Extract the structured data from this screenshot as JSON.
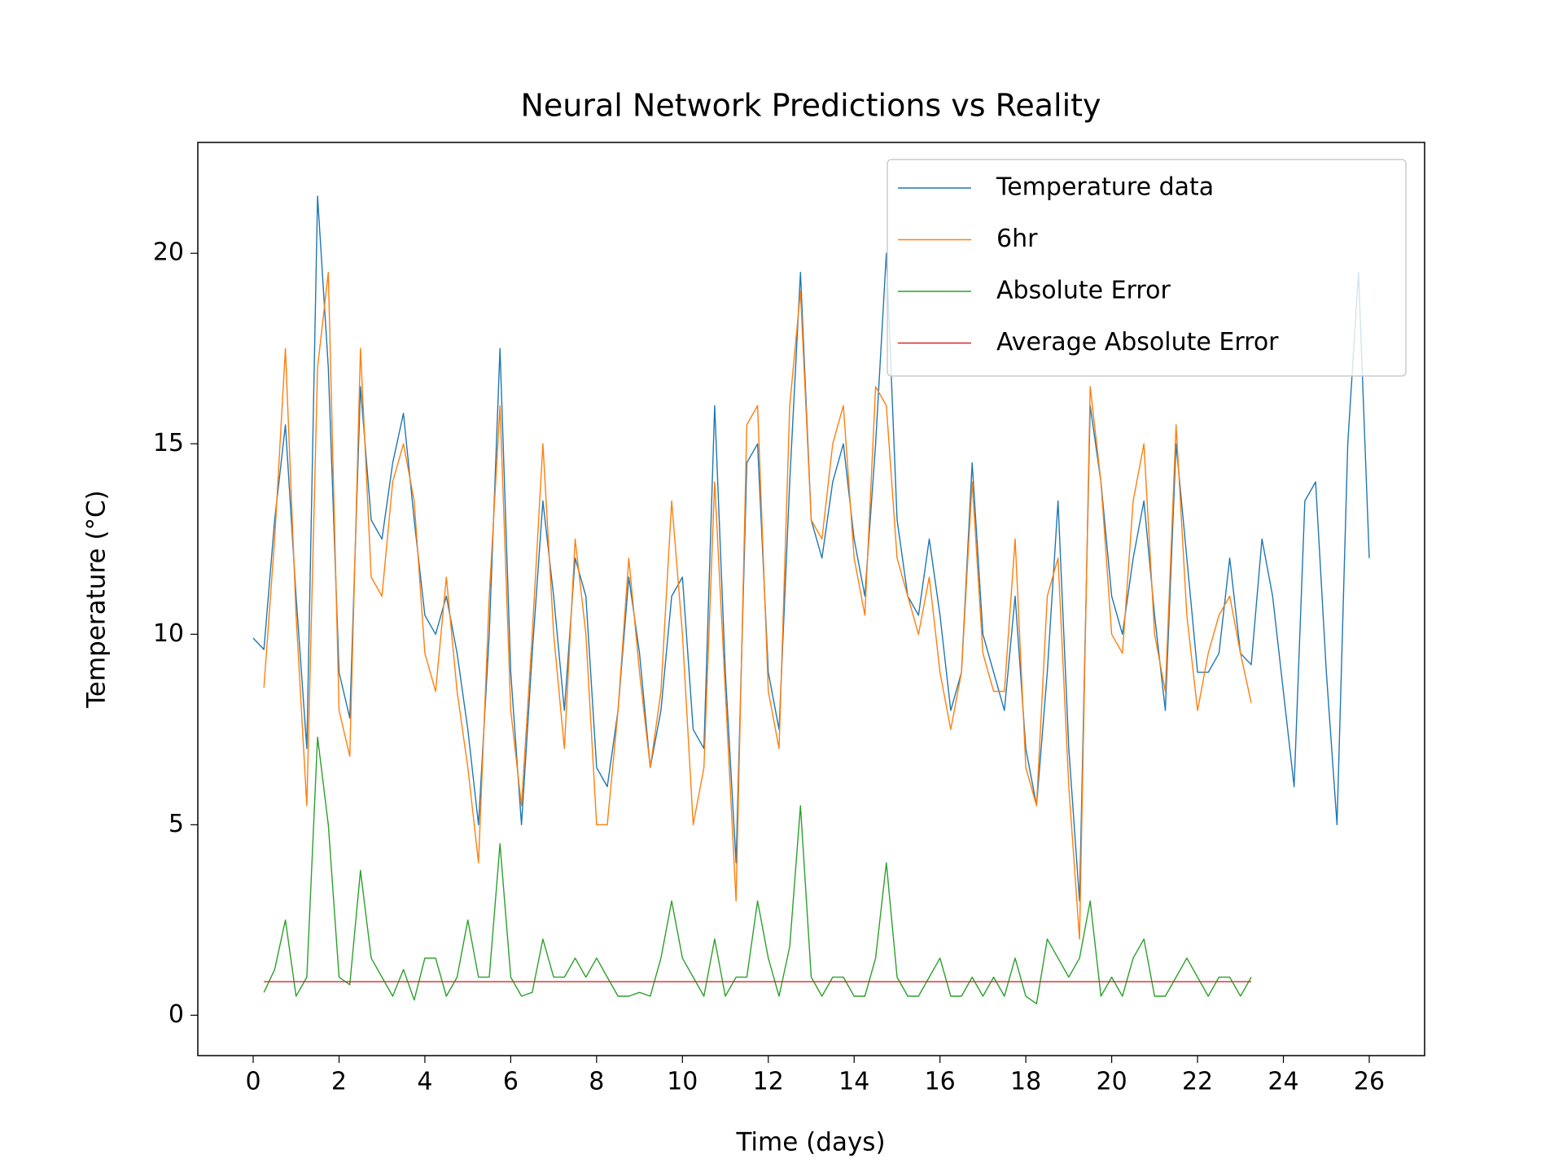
{
  "chart_data": {
    "type": "line",
    "title": "Neural Network Predictions vs Reality",
    "x_label": "Time (days)",
    "y_label": "Temperature (°C)",
    "xlim": [
      -1.29,
      27.29
    ],
    "ylim": [
      -1.06,
      22.91
    ],
    "xticks": [
      0,
      2,
      4,
      6,
      8,
      10,
      12,
      14,
      16,
      18,
      20,
      22,
      24,
      26
    ],
    "yticks": [
      0,
      5,
      10,
      15,
      20
    ],
    "legend": "upper right",
    "series": [
      {
        "name": "Temperature data",
        "color": "#1f77b4",
        "x": [
          0,
          0.25,
          0.5,
          0.75,
          1,
          1.25,
          1.5,
          1.75,
          2,
          2.25,
          2.5,
          2.75,
          3,
          3.25,
          3.5,
          3.75,
          4,
          4.25,
          4.5,
          4.75,
          5,
          5.25,
          5.5,
          5.75,
          6,
          6.25,
          6.5,
          6.75,
          7,
          7.25,
          7.5,
          7.75,
          8,
          8.25,
          8.5,
          8.75,
          9,
          9.25,
          9.5,
          9.75,
          10,
          10.25,
          10.5,
          10.75,
          11,
          11.25,
          11.5,
          11.75,
          12,
          12.25,
          12.5,
          12.75,
          13,
          13.25,
          13.5,
          13.75,
          14,
          14.25,
          14.5,
          14.75,
          15,
          15.25,
          15.5,
          15.75,
          16,
          16.25,
          16.5,
          16.75,
          17,
          17.25,
          17.5,
          17.75,
          18,
          18.25,
          18.5,
          18.75,
          19,
          19.25,
          19.5,
          19.75,
          20,
          20.25,
          20.5,
          20.75,
          21,
          21.25,
          21.5,
          21.75,
          22,
          22.25,
          22.5,
          22.75,
          23,
          23.25,
          23.5,
          23.75,
          24,
          24.25,
          24.5,
          24.75,
          25,
          25.25,
          25.5,
          25.75,
          26
        ],
        "values": [
          9.9,
          9.6,
          13,
          15.5,
          11,
          7,
          21.5,
          17,
          9,
          7.8,
          16.5,
          13,
          12.5,
          14.5,
          15.8,
          13,
          10.5,
          10,
          11,
          9.5,
          7.5,
          5,
          10,
          17.5,
          9,
          5,
          9.5,
          13.5,
          11,
          8,
          12,
          11,
          6.5,
          6,
          8,
          11.5,
          9.5,
          6.5,
          8,
          11,
          11.5,
          7.5,
          7,
          16,
          9,
          4,
          14.5,
          15,
          9,
          7.5,
          14,
          19.5,
          13,
          12,
          14,
          15,
          12.5,
          11,
          15,
          20,
          13,
          11,
          10.5,
          12.5,
          10.5,
          8,
          9,
          14.5,
          10,
          9,
          8,
          11,
          7,
          5.5,
          9,
          13.5,
          7,
          3,
          16,
          14,
          11,
          10,
          12,
          13.5,
          10.5,
          8,
          15,
          12,
          9,
          9,
          9.5,
          12,
          9.5,
          9.2,
          12.5,
          11,
          8.5,
          6,
          13.5,
          14,
          9,
          5,
          15,
          19.5,
          12
        ]
      },
      {
        "name": "6hr",
        "color": "#ff7f0e",
        "x": [
          0.25,
          0.5,
          0.75,
          1,
          1.25,
          1.5,
          1.75,
          2,
          2.25,
          2.5,
          2.75,
          3,
          3.25,
          3.5,
          3.75,
          4,
          4.25,
          4.5,
          4.75,
          5,
          5.25,
          5.5,
          5.75,
          6,
          6.25,
          6.5,
          6.75,
          7,
          7.25,
          7.5,
          7.75,
          8,
          8.25,
          8.5,
          8.75,
          9,
          9.25,
          9.5,
          9.75,
          10,
          10.25,
          10.5,
          10.75,
          11,
          11.25,
          11.5,
          11.75,
          12,
          12.25,
          12.5,
          12.75,
          13,
          13.25,
          13.5,
          13.75,
          14,
          14.25,
          14.5,
          14.75,
          15,
          15.25,
          15.5,
          15.75,
          16,
          16.25,
          16.5,
          16.75,
          17,
          17.25,
          17.5,
          17.75,
          18,
          18.25,
          18.5,
          18.75,
          19,
          19.25,
          19.5,
          19.75,
          20,
          20.25,
          20.5,
          20.75,
          21,
          21.25,
          21.5,
          21.75,
          22,
          22.25,
          22.5,
          22.75,
          23,
          23.25
        ],
        "values": [
          8.6,
          12.5,
          17.5,
          10.5,
          5.5,
          17,
          19.5,
          8,
          6.8,
          17.5,
          11.5,
          11,
          14,
          15,
          13.5,
          9.5,
          8.5,
          11.5,
          8.5,
          6.5,
          4,
          11,
          16,
          8,
          5.5,
          10,
          15,
          10,
          7,
          12.5,
          10,
          5,
          5,
          8,
          12,
          9,
          6.5,
          8.5,
          13.5,
          10,
          5,
          6.5,
          14,
          8.5,
          3,
          15.5,
          16,
          8.5,
          7,
          16,
          19,
          13,
          12.5,
          15,
          16,
          12,
          10.5,
          16.5,
          16,
          12,
          11,
          10,
          11.5,
          9,
          7.5,
          9,
          14,
          9.5,
          8.5,
          8.5,
          12.5,
          6.5,
          5.5,
          11,
          12,
          6,
          2,
          16.5,
          14,
          10,
          9.5,
          13.5,
          15,
          10,
          8.5,
          15.5,
          10.5,
          8,
          9.5,
          10.5,
          11,
          9.5,
          8.2
        ]
      },
      {
        "name": "Absolute Error",
        "color": "#2ca02c",
        "x": [
          0.25,
          0.5,
          0.75,
          1,
          1.25,
          1.5,
          1.75,
          2,
          2.25,
          2.5,
          2.75,
          3,
          3.25,
          3.5,
          3.75,
          4,
          4.25,
          4.5,
          4.75,
          5,
          5.25,
          5.5,
          5.75,
          6,
          6.25,
          6.5,
          6.75,
          7,
          7.25,
          7.5,
          7.75,
          8,
          8.25,
          8.5,
          8.75,
          9,
          9.25,
          9.5,
          9.75,
          10,
          10.25,
          10.5,
          10.75,
          11,
          11.25,
          11.5,
          11.75,
          12,
          12.25,
          12.5,
          12.75,
          13,
          13.25,
          13.5,
          13.75,
          14,
          14.25,
          14.5,
          14.75,
          15,
          15.25,
          15.5,
          15.75,
          16,
          16.25,
          16.5,
          16.75,
          17,
          17.25,
          17.5,
          17.75,
          18,
          18.25,
          18.5,
          18.75,
          19,
          19.25,
          19.5,
          19.75,
          20,
          20.25,
          20.5,
          20.75,
          21,
          21.25,
          21.5,
          21.75,
          22,
          22.25,
          22.5,
          22.75,
          23,
          23.25
        ],
        "values": [
          0.6,
          1.2,
          2.5,
          0.5,
          1,
          7.3,
          5,
          1,
          0.8,
          3.8,
          1.5,
          1,
          0.5,
          1.2,
          0.4,
          1.5,
          1.5,
          0.5,
          1,
          2.5,
          1,
          1,
          4.5,
          1,
          0.5,
          0.6,
          2,
          1,
          1,
          1.5,
          1,
          1.5,
          1,
          0.5,
          0.5,
          0.6,
          0.5,
          1.5,
          3,
          1.5,
          1,
          0.5,
          2,
          0.5,
          1,
          1,
          3,
          1.5,
          0.5,
          1.8,
          5.5,
          1,
          0.5,
          1,
          1,
          0.5,
          0.5,
          1.5,
          4,
          1,
          0.5,
          0.5,
          1,
          1.5,
          0.5,
          0.5,
          1,
          0.5,
          1,
          0.5,
          1.5,
          0.5,
          0.3,
          2,
          1.5,
          1,
          1.5,
          3,
          0.5,
          1,
          0.5,
          1.5,
          2,
          0.5,
          0.5,
          1,
          1.5,
          1,
          0.5,
          1,
          1,
          0.5,
          1
        ]
      },
      {
        "name": "Average Absolute Error",
        "color": "#d62728",
        "x": [
          0.25,
          23.25
        ],
        "values": [
          0.88,
          0.88
        ]
      }
    ]
  }
}
